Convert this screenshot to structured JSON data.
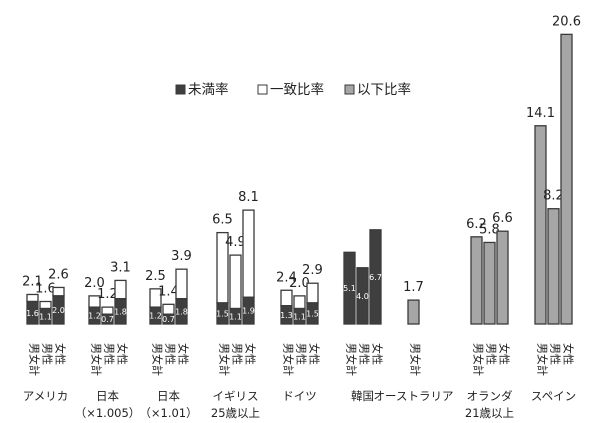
{
  "chart_data": {
    "type": "bar",
    "legend": [
      {
        "name": "未満率",
        "color": "#3f3f3f"
      },
      {
        "name": "一致比率",
        "color": "#ffffff"
      },
      {
        "name": "以下比率",
        "color": "#a6a6a6"
      }
    ],
    "groups": [
      {
        "label": "アメリカ",
        "bars": [
          {
            "x": "男女計",
            "total": 2.1,
            "under": 1.6,
            "match": 0.5
          },
          {
            "x": "男性",
            "total": 1.6,
            "under": 1.1,
            "match": 0.5
          },
          {
            "x": "女性",
            "total": 2.6,
            "under": 2.0,
            "match": 0.6
          }
        ]
      },
      {
        "label": "日本\n（×1.005）",
        "bars": [
          {
            "x": "男女計",
            "total": 2.0,
            "under": 1.2,
            "match": 0.8
          },
          {
            "x": "男性",
            "total": 1.2,
            "under": 0.7,
            "match": 0.5
          },
          {
            "x": "女性",
            "total": 3.1,
            "under": 1.8,
            "match": 1.3
          }
        ]
      },
      {
        "label": "日本\n（×1.01）",
        "bars": [
          {
            "x": "男女計",
            "total": 2.5,
            "under": 1.2,
            "match": 1.3
          },
          {
            "x": "男性",
            "total": 1.4,
            "under": 0.7,
            "match": 0.7
          },
          {
            "x": "女性",
            "total": 3.9,
            "under": 1.8,
            "match": 2.1
          }
        ]
      },
      {
        "label": "イギリス\n25歳以上",
        "bars": [
          {
            "x": "男女計",
            "total": 6.5,
            "under": 1.5,
            "match": 5.0
          },
          {
            "x": "男性",
            "total": 4.9,
            "under": 1.1,
            "match": 3.8
          },
          {
            "x": "女性",
            "total": 8.1,
            "under": 1.9,
            "match": 6.2
          }
        ]
      },
      {
        "label": "ドイツ",
        "bars": [
          {
            "x": "男女計",
            "total": 2.4,
            "under": 1.3,
            "match": 1.1
          },
          {
            "x": "男性",
            "total": 2.0,
            "under": 1.1,
            "match": 0.9
          },
          {
            "x": "女性",
            "total": 2.9,
            "under": 1.5,
            "match": 1.4
          }
        ]
      },
      {
        "label": "韓国",
        "bars": [
          {
            "x": "男女計",
            "total": 5.1,
            "under": 5.1,
            "match": 0
          },
          {
            "x": "男性",
            "total": 4.0,
            "under": 4.0,
            "match": 0
          },
          {
            "x": "女性",
            "total": 6.7,
            "under": 6.7,
            "match": 0
          }
        ]
      },
      {
        "label": "オーストラリア",
        "bars": [
          {
            "x": "男女計",
            "total": 1.7,
            "below": 1.7
          }
        ]
      },
      {
        "label": "オランダ\n21歳以上",
        "bars": [
          {
            "x": "男女計",
            "total": 6.2,
            "below": 6.2
          },
          {
            "x": "男性",
            "total": 5.8,
            "below": 5.8
          },
          {
            "x": "女性",
            "total": 6.6,
            "below": 6.6
          }
        ]
      },
      {
        "label": "スペイン",
        "bars": [
          {
            "x": "男女計",
            "total": 14.1,
            "below": 14.1
          },
          {
            "x": "男性",
            "total": 8.2,
            "below": 8.2
          },
          {
            "x": "女性",
            "total": 20.6,
            "below": 20.6
          }
        ]
      }
    ]
  }
}
